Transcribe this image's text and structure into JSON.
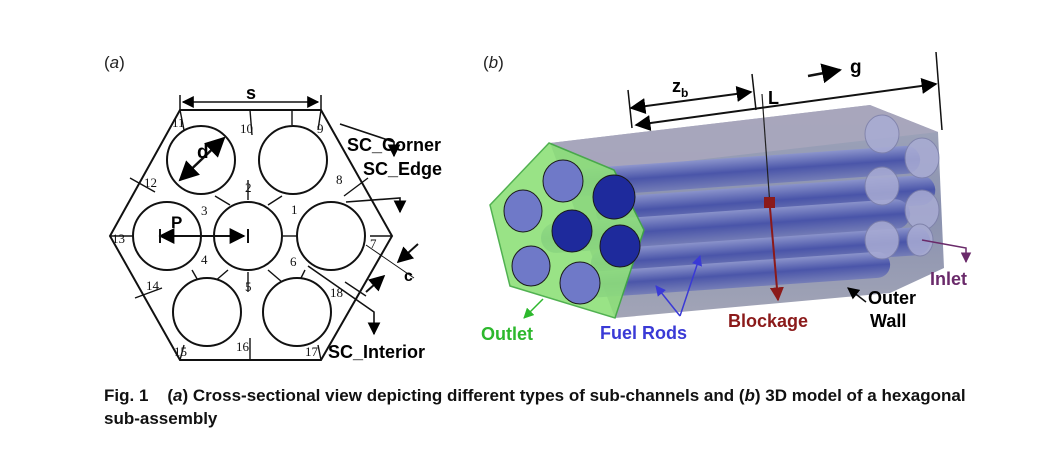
{
  "panel_a": {
    "label_open": "(",
    "label_letter": "a",
    "label_close": ")",
    "dim_s": "s",
    "dim_d": "d",
    "dim_p": "P",
    "dim_c": "c",
    "subchannels": [
      "1",
      "2",
      "3",
      "4",
      "5",
      "6",
      "7",
      "8",
      "9",
      "10",
      "11",
      "12",
      "13",
      "14",
      "15",
      "16",
      "17",
      "18"
    ],
    "callouts": {
      "corner": "SC_Corner",
      "edge": "SC_Edge",
      "interior": "SC_Interior"
    }
  },
  "panel_b": {
    "label_open": "(",
    "label_letter": "b",
    "label_close": ")",
    "dim_zb_main": "z",
    "dim_zb_sub": "b",
    "dim_l": "L",
    "gravity": "g",
    "labels": {
      "outlet": "Outlet",
      "fuel_rods": "Fuel Rods",
      "blockage": "Blockage",
      "outer_wall_1": "Outer",
      "outer_wall_2": "Wall",
      "inlet": "Inlet"
    },
    "colors": {
      "outlet": "#2db82d",
      "fuel_rods": "#3a3ad6",
      "blockage": "#8b1a1a",
      "inlet": "#6a2a6a",
      "rod_face": "#1e2a9c",
      "rod_face_light": "#6f79c8",
      "body": "#7e86a6",
      "end_face": "#8ee07a"
    }
  },
  "caption": {
    "fig": "Fig. 1",
    "paren_a_open": "(",
    "a": "a",
    "paren_a_close": ")",
    "text_1": " Cross-sectional view depicting different types of sub-channels and ",
    "paren_b_open": "(",
    "b": "b",
    "paren_b_close": ")",
    "text_2": " 3D model of a hexagonal sub-assembly"
  }
}
